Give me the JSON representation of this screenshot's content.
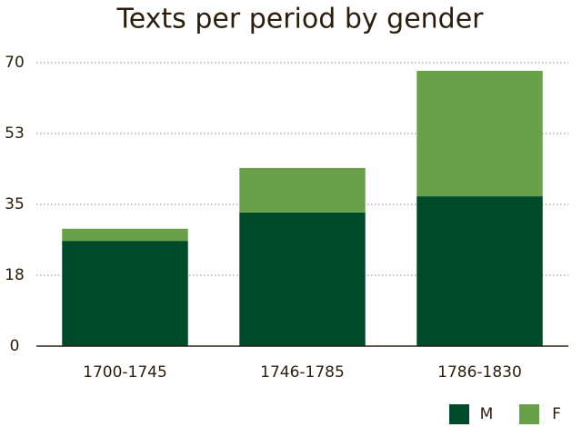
{
  "chart_data": {
    "type": "stacked_bar",
    "title": "Texts per period by gender",
    "categories": [
      "1700-1745",
      "1746-1785",
      "1786-1830"
    ],
    "series": [
      {
        "name": "M",
        "color": "#004a2c",
        "values": [
          26,
          33,
          37
        ]
      },
      {
        "name": "F",
        "color": "#6aa04a",
        "values": [
          3,
          11,
          31
        ]
      }
    ],
    "ylim": [
      0,
      70
    ],
    "yticks": [
      0,
      {
        "value": 17.5,
        "label": "18"
      },
      35,
      {
        "value": 52.5,
        "label": "53"
      },
      70
    ],
    "grid": true,
    "legend": "bottom-right"
  }
}
